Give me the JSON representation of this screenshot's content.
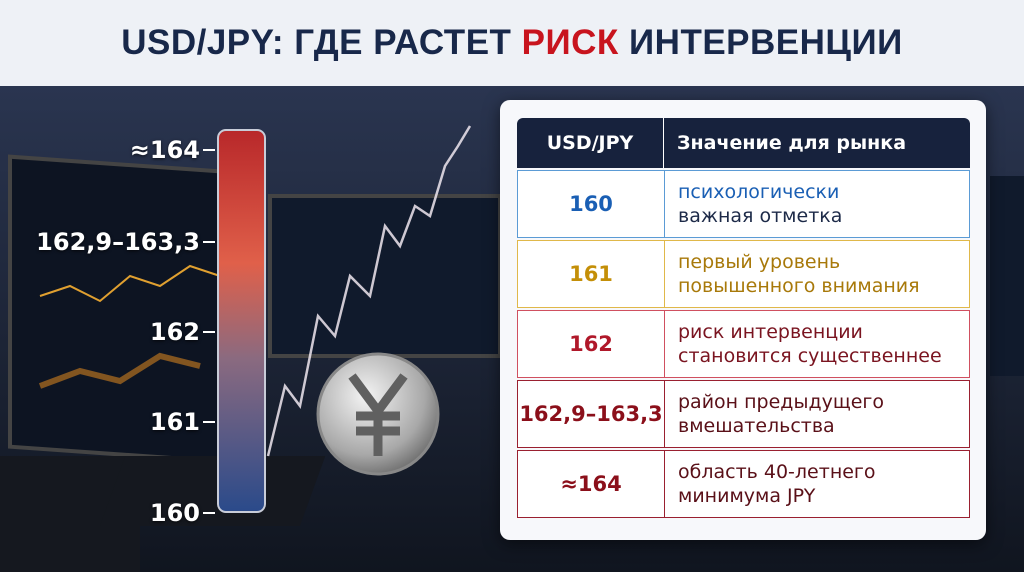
{
  "header": {
    "title": [
      "USD/JPY: ГДЕ РАСТЕТ ",
      "РИСК",
      " ИНТЕРВЕНЦИИ"
    ]
  },
  "scale": {
    "labels": [
      "≈164",
      "162,9–163,3",
      "162",
      "161",
      "160"
    ]
  },
  "table": {
    "columns": [
      "USD/JPY",
      "Значение для рынка"
    ],
    "rows": [
      {
        "level": "160",
        "description": [
          "психологически",
          "важная отметка"
        ]
      },
      {
        "level": "161",
        "description": [
          "первый уровень",
          "повышенного внимания"
        ]
      },
      {
        "level": "162",
        "description": [
          "риск интервенции",
          "становится существеннее"
        ]
      },
      {
        "level": "162,9–163,3",
        "description": [
          "район предыдущего",
          "вмешательства"
        ]
      },
      {
        "level": "≈164",
        "description": [
          "область 40-летнего",
          "минимума JPY"
        ]
      }
    ]
  }
}
